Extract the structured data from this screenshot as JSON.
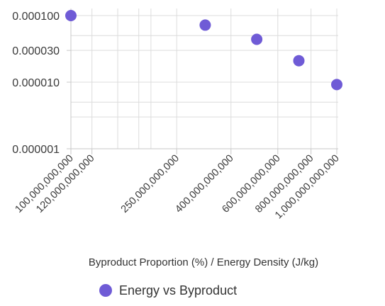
{
  "chart_data": {
    "type": "scatter",
    "xlabel": "Byproduct Proportion (%) / Energy Density (J/kg)",
    "x_scale": "log",
    "y_scale": "log",
    "xlim": [
      100000000000,
      1000000000000
    ],
    "ylim": [
      1e-06,
      0.0001
    ],
    "x_ticks": [
      {
        "value": 100000000000,
        "label": "100,000,000,000"
      },
      {
        "value": 120000000000,
        "label": "120,000,000,000"
      },
      {
        "value": 250000000000,
        "label": "250,000,000,000"
      },
      {
        "value": 400000000000,
        "label": "400,000,000,000"
      },
      {
        "value": 600000000000,
        "label": "600,000,000,000"
      },
      {
        "value": 800000000000,
        "label": "800,000,000,000"
      },
      {
        "value": 1000000000000,
        "label": "1,000,000,000,000"
      }
    ],
    "y_ticks": [
      {
        "value": 0.0001,
        "label": "0.000100"
      },
      {
        "value": 3e-05,
        "label": "0.000030"
      },
      {
        "value": 1e-05,
        "label": "0.000010"
      },
      {
        "value": 1e-06,
        "label": "0.000001"
      }
    ],
    "x_minor_gridlines": [
      150000000000,
      180000000000,
      200000000000
    ],
    "y_minor_gridlines": [
      5e-05,
      5e-06,
      3e-06
    ],
    "grid": true,
    "legend_position": "bottom",
    "series": [
      {
        "name": "Energy vs Byproduct",
        "color": "#6f5bd6",
        "points": [
          {
            "x": 100000000000,
            "y": 0.0001
          },
          {
            "x": 320000000000,
            "y": 7.2e-05
          },
          {
            "x": 500000000000,
            "y": 4.4e-05
          },
          {
            "x": 720000000000,
            "y": 2.1e-05
          },
          {
            "x": 1000000000000,
            "y": 9.2e-06
          }
        ]
      }
    ]
  }
}
